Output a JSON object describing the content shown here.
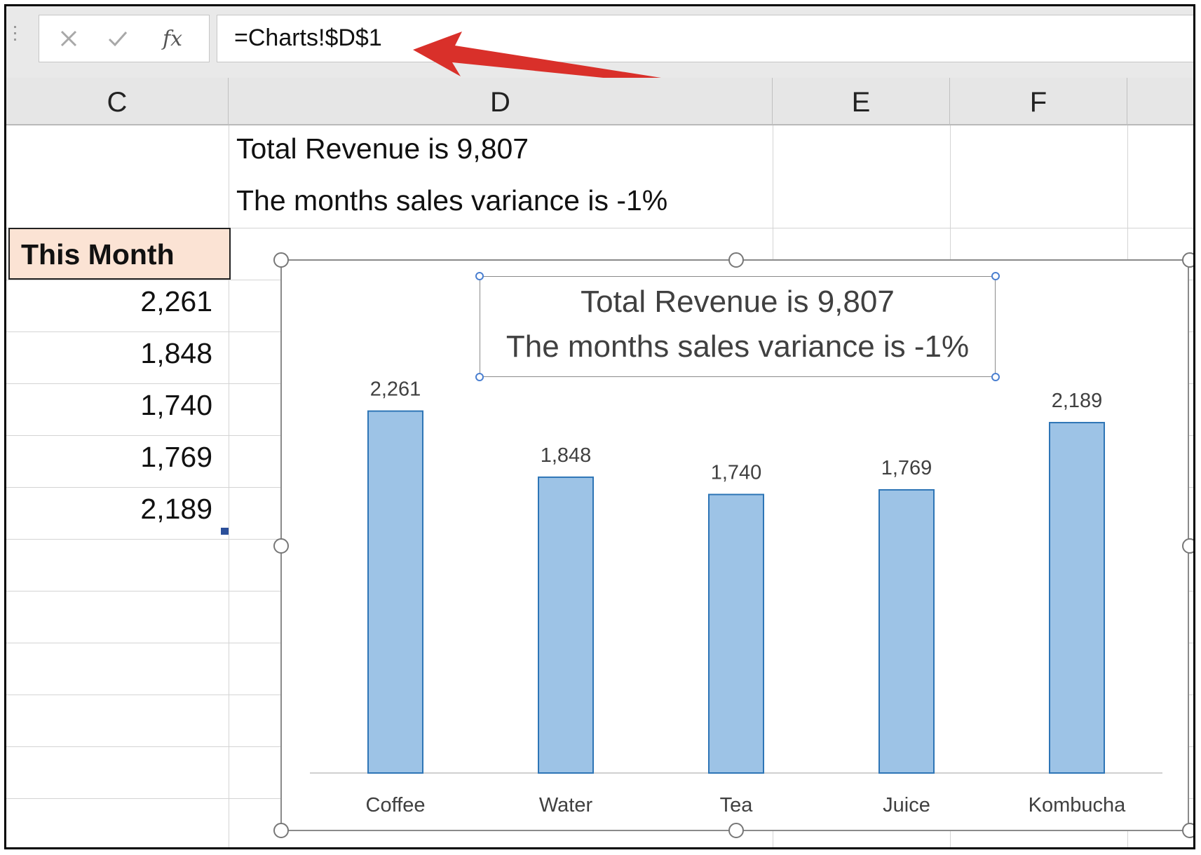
{
  "formula_bar": {
    "cancel_icon": "x-icon",
    "confirm_icon": "checkmark-icon",
    "function_icon_label": "fx",
    "formula": "=Charts!$D$1"
  },
  "columns": [
    "C",
    "D",
    "E",
    "F"
  ],
  "cells": {
    "d1": "Total Revenue is 9,807",
    "d2": "The months sales variance is -1%",
    "c3": "This Month",
    "values": [
      "2,261",
      "1,848",
      "1,740",
      "1,769",
      "2,189"
    ]
  },
  "colors": {
    "bar_fill": "#9dc3e6",
    "bar_stroke": "#2e75b6",
    "header_fill": "#fbe3d4",
    "arrow": "#d9302a"
  },
  "chart_data": {
    "type": "bar",
    "title_lines": [
      "Total Revenue is 9,807",
      "The months sales variance is -1%"
    ],
    "categories": [
      "Coffee",
      "Water",
      "Tea",
      "Juice",
      "Kombucha"
    ],
    "values": [
      2261,
      1848,
      1740,
      1769,
      2189
    ],
    "data_labels": [
      "2,261",
      "1,848",
      "1,740",
      "1,769",
      "2,189"
    ],
    "xlabel": "",
    "ylabel": "",
    "ylim": [
      0,
      2500
    ],
    "grid": false,
    "legend": "none"
  }
}
